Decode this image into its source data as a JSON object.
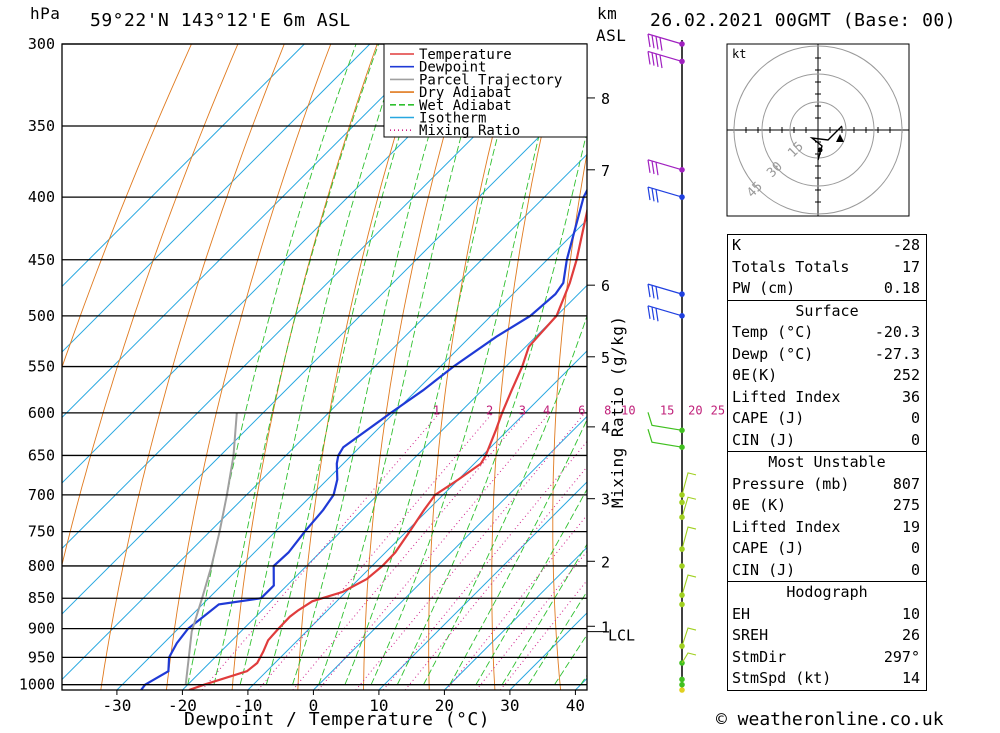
{
  "header": {
    "location": "59°22'N 143°12'E 6m ASL",
    "datetime": "26.02.2021 00GMT (Base: 00)",
    "hpa_label": "hPa",
    "km_label": "km",
    "asl_label": "ASL"
  },
  "chart_data": {
    "type": "line",
    "title": "59°22'N 143°12'E 6m ASL",
    "xlabel": "Dewpoint / Temperature (°C)",
    "ylabel": "hPa",
    "y2label": "Mixing Ratio (g/kg)",
    "pressure_ticks": [
      300,
      350,
      400,
      450,
      500,
      550,
      600,
      650,
      700,
      750,
      800,
      850,
      900,
      950,
      1000
    ],
    "temp_ticks": [
      -30,
      -20,
      -10,
      0,
      10,
      20,
      30,
      40
    ],
    "km_ticks": [
      {
        "label": "8",
        "p": 332
      },
      {
        "label": "7",
        "p": 380
      },
      {
        "label": "6",
        "p": 472
      },
      {
        "label": "5",
        "p": 540
      },
      {
        "label": "4",
        "p": 616
      },
      {
        "label": "3",
        "p": 705
      },
      {
        "label": "2",
        "p": 793
      },
      {
        "label": "1",
        "p": 896
      }
    ],
    "lcl_label": "LCL",
    "lcl_p": 905,
    "mixing_ratio_labels": [
      "1",
      "2",
      "3",
      "4",
      "6",
      "8",
      "10",
      "15",
      "20",
      "25"
    ],
    "legend": [
      "Temperature",
      "Dewpoint",
      "Parcel Trajectory",
      "Dry Adiabat",
      "Wet Adiabat",
      "Isotherm",
      "Mixing Ratio"
    ],
    "series": [
      {
        "name": "Temperature",
        "color": "#e03c3c",
        "points": [
          [
            1010,
            -19
          ],
          [
            1000,
            -17.5
          ],
          [
            975,
            -13
          ],
          [
            960,
            -12.7
          ],
          [
            940,
            -13.5
          ],
          [
            920,
            -14.5
          ],
          [
            900,
            -14.7
          ],
          [
            880,
            -14.8
          ],
          [
            870,
            -14.5
          ],
          [
            855,
            -13.7
          ],
          [
            840,
            -10.5
          ],
          [
            820,
            -8.8
          ],
          [
            800,
            -8.4
          ],
          [
            780,
            -8.5
          ],
          [
            750,
            -9.5
          ],
          [
            720,
            -10.6
          ],
          [
            700,
            -11.2
          ],
          [
            680,
            -10
          ],
          [
            660,
            -9
          ],
          [
            650,
            -9.5
          ],
          [
            620,
            -11.8
          ],
          [
            600,
            -13.5
          ],
          [
            575,
            -15.5
          ],
          [
            550,
            -17.5
          ],
          [
            530,
            -19.5
          ],
          [
            520,
            -19.7
          ],
          [
            500,
            -20
          ],
          [
            470,
            -23
          ],
          [
            450,
            -25.5
          ],
          [
            400,
            -33
          ],
          [
            350,
            -41.5
          ],
          [
            335,
            -44
          ],
          [
            320,
            -45
          ],
          [
            305,
            -47
          ],
          [
            300,
            -47.5
          ]
        ]
      },
      {
        "name": "Dewpoint",
        "color": "#1f3ad6",
        "points": [
          [
            1010,
            -26.3
          ],
          [
            1000,
            -26.5
          ],
          [
            975,
            -25
          ],
          [
            950,
            -27
          ],
          [
            925,
            -28
          ],
          [
            900,
            -28.5
          ],
          [
            880,
            -28
          ],
          [
            860,
            -27.5
          ],
          [
            850,
            -22
          ],
          [
            830,
            -22
          ],
          [
            800,
            -25
          ],
          [
            780,
            -24.8
          ],
          [
            750,
            -25.5
          ],
          [
            720,
            -26
          ],
          [
            700,
            -26.7
          ],
          [
            680,
            -28.5
          ],
          [
            660,
            -31
          ],
          [
            650,
            -32
          ],
          [
            640,
            -32.5
          ],
          [
            610,
            -31
          ],
          [
            600,
            -30.5
          ],
          [
            575,
            -29
          ],
          [
            550,
            -28
          ],
          [
            520,
            -26
          ],
          [
            500,
            -24
          ],
          [
            480,
            -23.5
          ],
          [
            470,
            -24
          ],
          [
            450,
            -27
          ],
          [
            400,
            -34
          ],
          [
            380,
            -36
          ],
          [
            350,
            -41
          ],
          [
            330,
            -44
          ],
          [
            305,
            -49
          ],
          [
            300,
            -50
          ]
        ]
      },
      {
        "name": "Parcel Trajectory",
        "color": "#a0a0a0",
        "points": [
          [
            1000,
            -20.3
          ],
          [
            950,
            -24
          ],
          [
            905,
            -27.5
          ],
          [
            850,
            -31
          ],
          [
            800,
            -34.5
          ],
          [
            750,
            -38.5
          ],
          [
            700,
            -43
          ],
          [
            650,
            -48
          ],
          [
            600,
            -54
          ]
        ]
      }
    ],
    "info_table": {
      "top": [
        [
          "K",
          "-28"
        ],
        [
          "Totals Totals",
          "17"
        ],
        [
          "PW (cm)",
          "0.18"
        ]
      ],
      "surface": {
        "title": "Surface",
        "rows": [
          [
            "Temp (°C)",
            "-20.3"
          ],
          [
            "Dewp (°C)",
            "-27.3"
          ],
          [
            "θE(K)",
            "252"
          ],
          [
            "Lifted Index",
            "36"
          ],
          [
            "CAPE (J)",
            "0"
          ],
          [
            "CIN (J)",
            "0"
          ]
        ]
      },
      "most_unstable": {
        "title": "Most Unstable",
        "rows": [
          [
            "Pressure (mb)",
            "807"
          ],
          [
            "θE (K)",
            "275"
          ],
          [
            "Lifted Index",
            "19"
          ],
          [
            "CAPE (J)",
            "0"
          ],
          [
            "CIN (J)",
            "0"
          ]
        ]
      },
      "hodograph": {
        "title": "Hodograph",
        "rows": [
          [
            "EH",
            "10"
          ],
          [
            "SREH",
            "26"
          ],
          [
            "StmDir",
            "297°"
          ],
          [
            "StmSpd (kt)",
            "14"
          ]
        ]
      }
    },
    "hodograph": {
      "unit_label": "kt",
      "ring_labels": [
        "15",
        "30",
        "45"
      ]
    }
  },
  "footer": {
    "credit": "© weatheronline.co.uk"
  }
}
